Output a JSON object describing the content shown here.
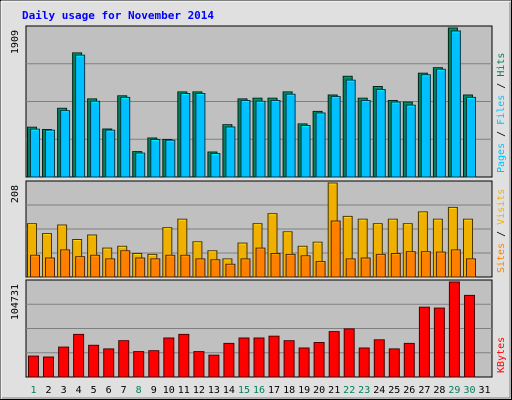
{
  "chart_data": {
    "type": "bar",
    "title": "Daily usage for November 2014",
    "days": [
      "1",
      "2",
      "3",
      "4",
      "5",
      "6",
      "7",
      "8",
      "9",
      "10",
      "11",
      "12",
      "13",
      "14",
      "15",
      "16",
      "17",
      "18",
      "19",
      "20",
      "21",
      "22",
      "23",
      "24",
      "25",
      "26",
      "27",
      "28",
      "29",
      "30",
      "31"
    ],
    "weekend_days": [
      "1",
      "8",
      "15",
      "16",
      "22",
      "23",
      "29",
      "30"
    ],
    "colors": {
      "hits": "#00805c",
      "files": "#00c0ff",
      "visits": "#f0b000",
      "sites": "#ff8000",
      "kbytes": "#ff0000",
      "weekday_label": "#000000",
      "weekend_label": "#00805c",
      "title": "#0000ff",
      "panel_bg": "#c0c0c0",
      "frame_bg": "#e0e0e0"
    },
    "panels": [
      {
        "id": "hits-files",
        "ymax_label": "1909",
        "ylim": [
          0,
          1909
        ],
        "legend": [
          {
            "text": "Hits",
            "color": "#00805c"
          },
          {
            "text": "Files",
            "color": "#00c0ff"
          },
          {
            "text": "Pages",
            "color": "#00c0ff"
          }
        ],
        "series": [
          {
            "name": "Hits",
            "color": "#00805c",
            "values": [
              638,
              608,
              880,
              1590,
              1000,
              615,
              1040,
              326,
              500,
              480,
              1090,
              1090,
              320,
              670,
              1000,
              1010,
              1010,
              1090,
              680,
              840,
              1050,
              1290,
              1010,
              1160,
              980,
              960,
              1330,
              1400,
              1909,
              1050,
              0
            ]
          },
          {
            "name": "Files",
            "color": "#00c0ff",
            "values": [
              612,
              600,
              850,
              1560,
              970,
              600,
              1020,
              306,
              480,
              470,
              1070,
              1070,
              300,
              640,
              980,
              970,
              980,
              1060,
              660,
              820,
              1030,
              1240,
              980,
              1120,
              960,
              920,
              1310,
              1380,
              1870,
              1020,
              0
            ]
          }
        ]
      },
      {
        "id": "visits-sites",
        "ymax_label": "208",
        "ylim": [
          0,
          208
        ],
        "legend": [
          {
            "text": "Visits",
            "color": "#f0b000"
          },
          {
            "text": "Sites",
            "color": "#ff8000"
          }
        ],
        "series": [
          {
            "name": "Visits",
            "color": "#f0b000",
            "values": [
              118,
              96,
              115,
              83,
              93,
              64,
              68,
              52,
              50,
              109,
              128,
              78,
              58,
              40,
              75,
              118,
              140,
              100,
              68,
              77,
              208,
              134,
              128,
              118,
              128,
              118,
              144,
              128,
              154,
              128,
              0
            ]
          },
          {
            "name": "Sites",
            "color": "#ff8000",
            "values": [
              48,
              42,
              60,
              45,
              48,
              40,
              58,
              42,
              40,
              48,
              48,
              40,
              38,
              28,
              40,
              64,
              52,
              50,
              47,
              34,
              124,
              40,
              42,
              50,
              52,
              56,
              56,
              55,
              60,
              40,
              0
            ]
          }
        ]
      },
      {
        "id": "kbytes",
        "ymax_label": "104731",
        "ylim": [
          0,
          104731
        ],
        "legend": [
          {
            "text": "KBytes",
            "color": "#ff0000"
          }
        ],
        "series": [
          {
            "name": "KBytes",
            "color": "#ff0000",
            "values": [
              23000,
              22000,
              33000,
              47000,
              35000,
              31000,
              40000,
              28000,
              29000,
              43000,
              47000,
              28000,
              24000,
              37000,
              43000,
              43000,
              45000,
              40000,
              32000,
              38000,
              50000,
              53000,
              32000,
              41000,
              31000,
              37000,
              77000,
              76000,
              104731,
              90000,
              0
            ]
          }
        ]
      }
    ]
  }
}
